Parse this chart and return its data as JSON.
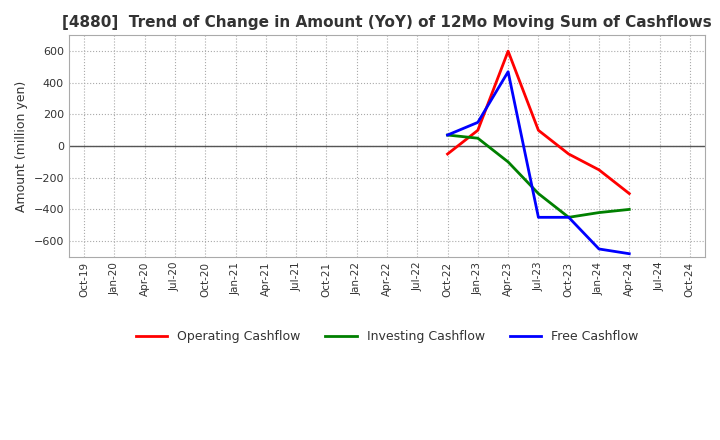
{
  "title": "[4880]  Trend of Change in Amount (YoY) of 12Mo Moving Sum of Cashflows",
  "ylabel": "Amount (million yen)",
  "ylim": [
    -700,
    700
  ],
  "yticks": [
    -600,
    -400,
    -200,
    0,
    200,
    400,
    600
  ],
  "x_labels": [
    "Oct-19",
    "Jan-20",
    "Apr-20",
    "Jul-20",
    "Oct-20",
    "Jan-21",
    "Apr-21",
    "Jul-21",
    "Oct-21",
    "Jan-22",
    "Apr-22",
    "Jul-22",
    "Oct-22",
    "Jan-23",
    "Apr-23",
    "Jul-23",
    "Oct-23",
    "Jan-24",
    "Apr-24",
    "Jul-24",
    "Oct-24"
  ],
  "operating_cashflow": {
    "label": "Operating Cashflow",
    "color": "#ff0000",
    "x_indices": [
      12,
      13,
      14,
      15,
      16,
      17,
      18
    ],
    "values": [
      -50,
      100,
      600,
      100,
      -50,
      -150,
      -300
    ]
  },
  "investing_cashflow": {
    "label": "Investing Cashflow",
    "color": "#008000",
    "x_indices": [
      12,
      13,
      14,
      15,
      16,
      17,
      18
    ],
    "values": [
      70,
      50,
      -100,
      -300,
      -450,
      -420,
      -400
    ]
  },
  "free_cashflow": {
    "label": "Free Cashflow",
    "color": "#0000ff",
    "x_indices": [
      12,
      13,
      14,
      15,
      16,
      17,
      18
    ],
    "values": [
      70,
      150,
      470,
      -450,
      -450,
      -650,
      -680
    ]
  },
  "grid_color": "#aaaaaa",
  "bg_color": "#ffffff",
  "title_color": "#333333",
  "title_fontsize": 11,
  "line_width": 2.0
}
